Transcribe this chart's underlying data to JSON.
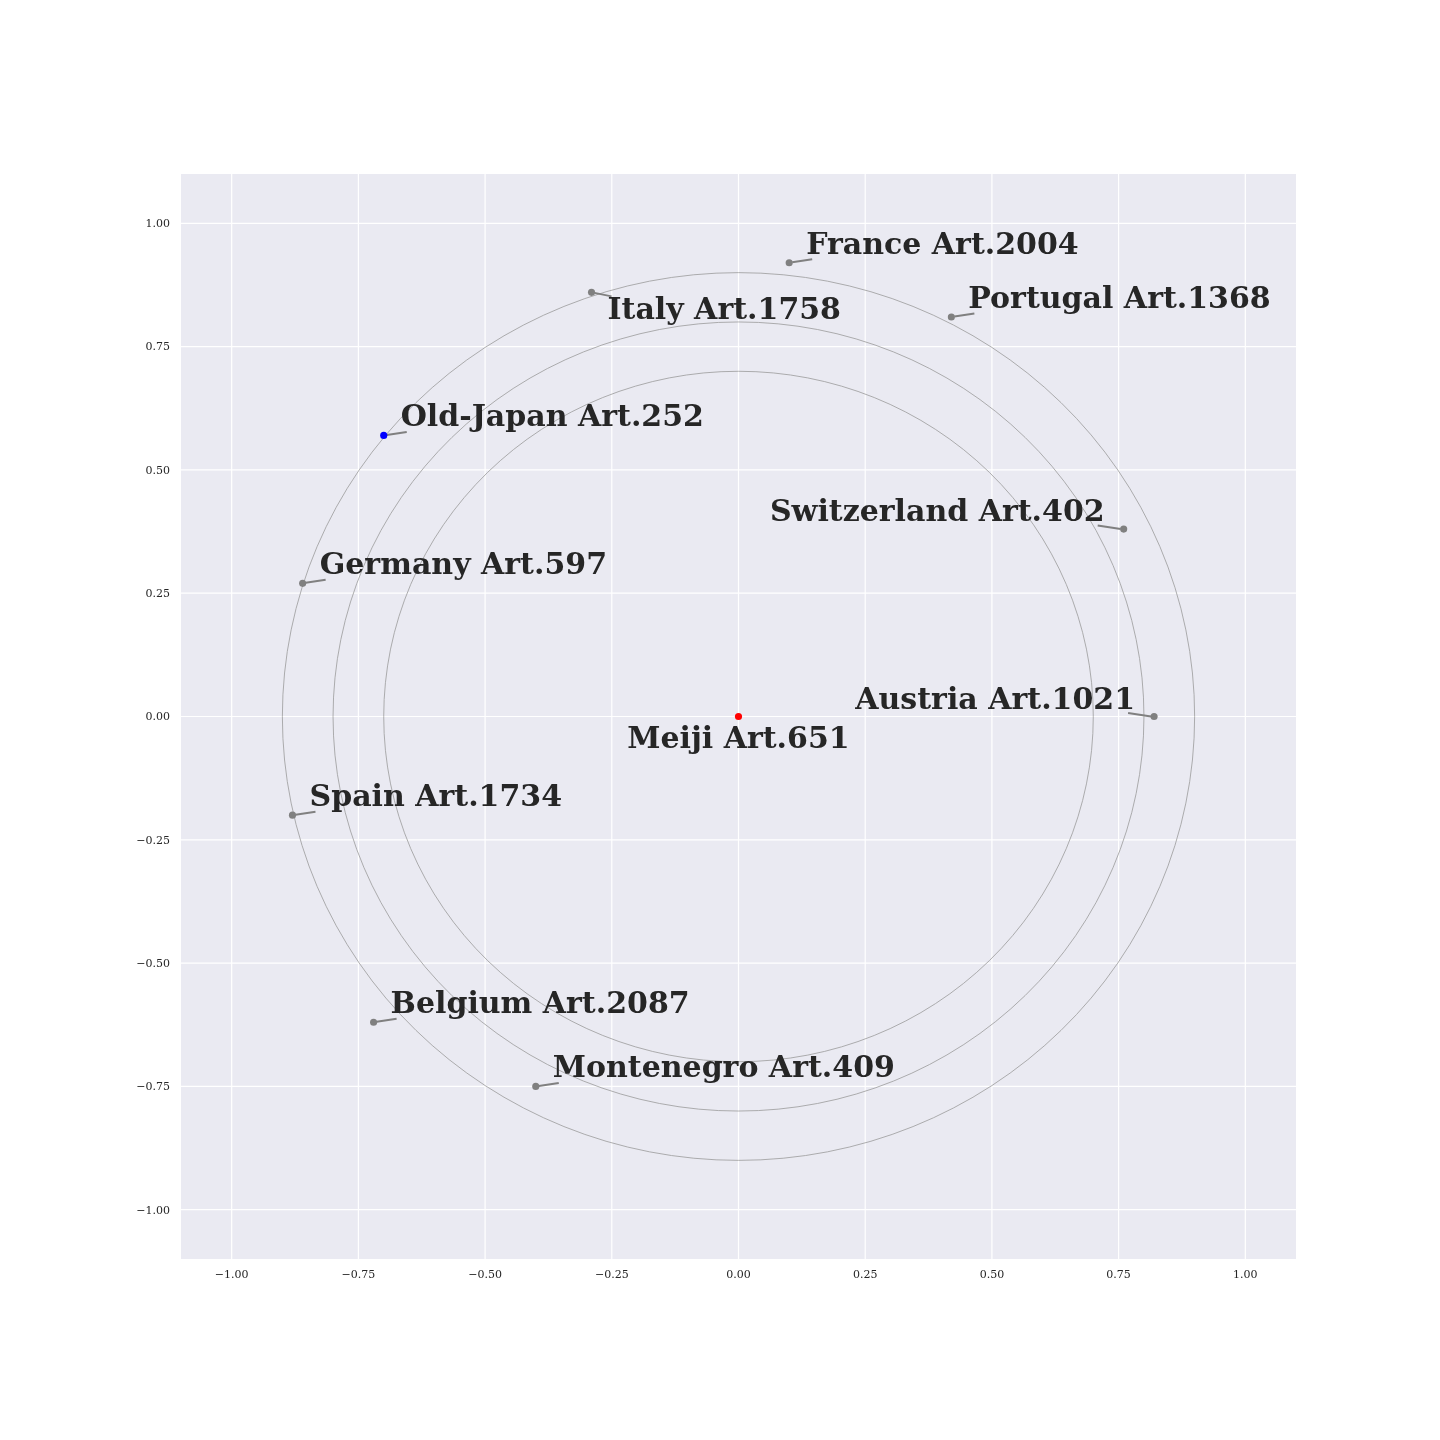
{
  "chart_data": {
    "type": "scatter",
    "xlim": [
      -1.1,
      1.1
    ],
    "ylim": [
      -1.1,
      1.1
    ],
    "xticks": [
      {
        "value": -1,
        "label": "−1.00"
      },
      {
        "value": -0.75,
        "label": "−0.75"
      },
      {
        "value": -0.5,
        "label": "−0.50"
      },
      {
        "value": -0.25,
        "label": "−0.25"
      },
      {
        "value": 0,
        "label": "0.00"
      },
      {
        "value": 0.25,
        "label": "0.25"
      },
      {
        "value": 0.5,
        "label": "0.50"
      },
      {
        "value": 0.75,
        "label": "0.75"
      },
      {
        "value": 1,
        "label": "1.00"
      }
    ],
    "yticks": [
      {
        "value": -1,
        "label": "−1.00"
      },
      {
        "value": -0.75,
        "label": "−0.75"
      },
      {
        "value": -0.5,
        "label": "−0.50"
      },
      {
        "value": -0.25,
        "label": "−0.25"
      },
      {
        "value": 0,
        "label": "0.00"
      },
      {
        "value": 0.25,
        "label": "0.25"
      },
      {
        "value": 0.5,
        "label": "0.50"
      },
      {
        "value": 0.75,
        "label": "0.75"
      },
      {
        "value": 1,
        "label": "1.00"
      }
    ],
    "grid": true,
    "marker": "circle",
    "series": [
      {
        "x": [
          0.1,
          0.42,
          -0.29,
          -0.7,
          0.76,
          -0.86,
          0.82,
          0,
          -0.88,
          -0.72,
          -0.4
        ],
        "values": [
          0.92,
          0.81,
          0.86,
          0.57,
          0.38,
          0.27,
          0,
          0,
          -0.2,
          -0.62,
          -0.75
        ],
        "colors": [
          "#808080",
          "#808080",
          "#808080",
          "#0000ff",
          "#808080",
          "#808080",
          "#808080",
          "#ff0000",
          "#808080",
          "#808080",
          "#808080"
        ]
      }
    ],
    "annotations": [
      {
        "text": "France Art.2004",
        "x": 0.1,
        "y": 0.92
      },
      {
        "text": "Portugal Art.1368",
        "x": 0.42,
        "y": 0.81
      },
      {
        "text": "Italy Art.1758",
        "x": -0.29,
        "y": 0.86
      },
      {
        "text": "Old-Japan Art.252",
        "x": -0.7,
        "y": 0.57
      },
      {
        "text": "Switzerland Art.402",
        "x": 0.76,
        "y": 0.38
      },
      {
        "text": "Germany Art.597",
        "x": -0.86,
        "y": 0.27
      },
      {
        "text": "Austria Art.1021",
        "x": 0.82,
        "y": 0
      },
      {
        "text": "Meiji Art.651",
        "x": 0,
        "y": 0
      },
      {
        "text": "Spain Art.1734",
        "x": -0.88,
        "y": -0.2
      },
      {
        "text": "Belgium Art.2087",
        "x": -0.72,
        "y": -0.62
      },
      {
        "text": "Montenegro Art.409",
        "x": -0.4,
        "y": -0.75
      }
    ]
  }
}
